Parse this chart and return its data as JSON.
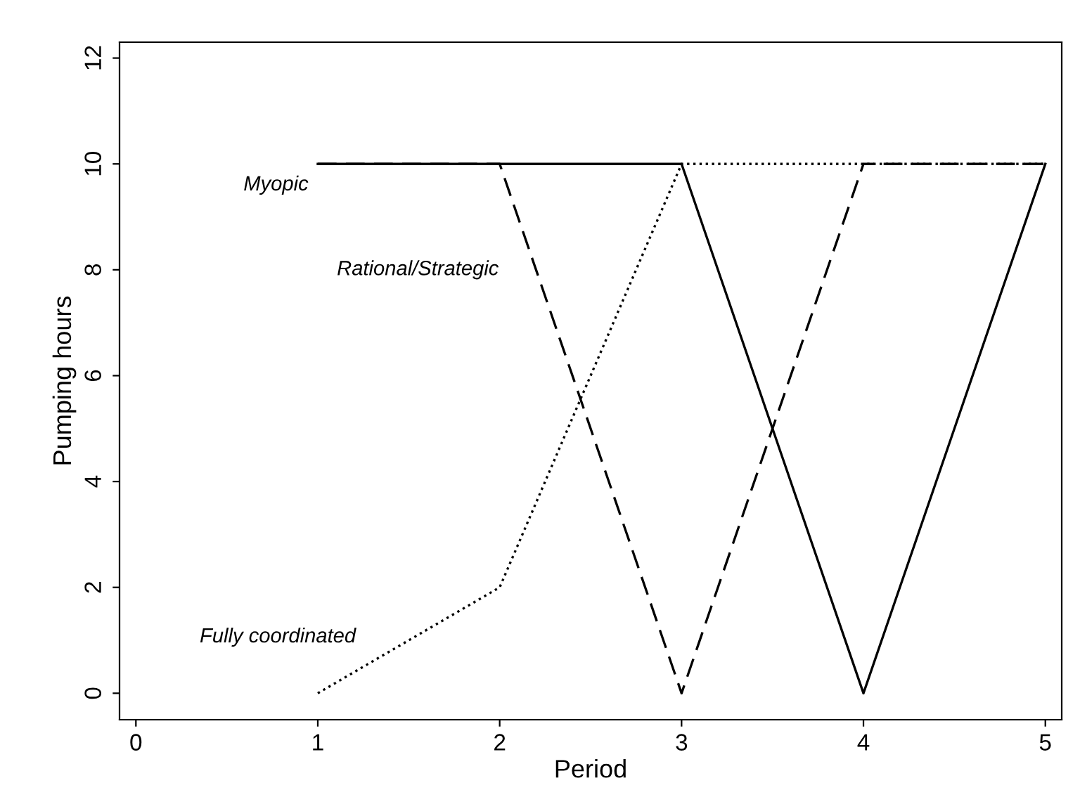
{
  "chart_data": {
    "type": "line",
    "xlabel": "Period",
    "ylabel": "Pumping hours",
    "x": [
      1,
      2,
      3,
      4,
      5
    ],
    "series": [
      {
        "name": "Myopic",
        "color": "#000000",
        "line_style": "solid",
        "values": [
          10,
          10,
          10,
          0,
          10
        ]
      },
      {
        "name": "Rational/Strategic",
        "color": "#000000",
        "line_style": "dashed",
        "values": [
          10,
          10,
          0,
          10,
          10
        ]
      },
      {
        "name": "Fully coordinated",
        "color": "#000000",
        "line_style": "dotted",
        "values": [
          0,
          2,
          10,
          10,
          10
        ]
      }
    ],
    "xlim": [
      -0.09,
      5.09
    ],
    "xticks": [
      0,
      1,
      2,
      3,
      4,
      5
    ],
    "ylim": [
      -0.5,
      12.3
    ],
    "yticks": [
      0,
      2,
      4,
      6,
      8,
      10,
      12
    ],
    "grid": false,
    "marker": "none"
  }
}
